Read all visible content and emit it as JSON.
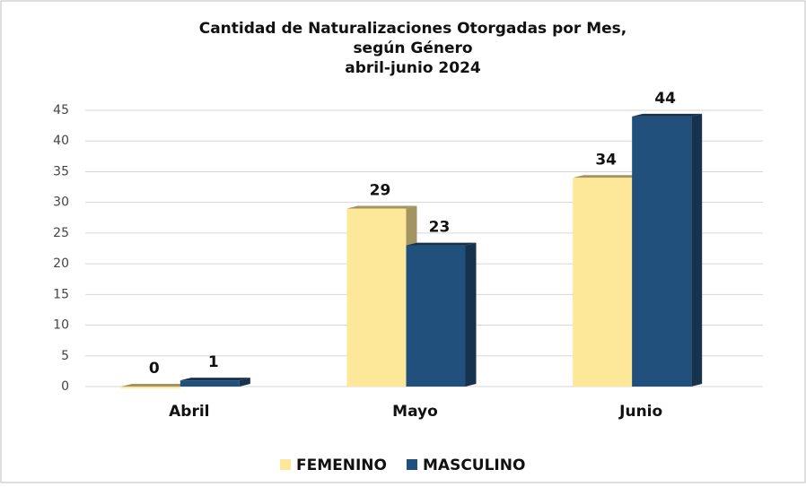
{
  "chart_data": {
    "type": "bar",
    "title": [
      "Cantidad de Naturalizaciones Otorgadas por Mes,",
      "según Género",
      "abril-junio 2024"
    ],
    "categories": [
      "Abril",
      "Mayo",
      "Junio"
    ],
    "series": [
      {
        "name": "FEMENINO",
        "color": "#fde89a",
        "side_color": "#a39462",
        "values": [
          0,
          29,
          34
        ]
      },
      {
        "name": "MASCULINO",
        "color": "#22507d",
        "side_color": "#16324d",
        "values": [
          1,
          23,
          44
        ]
      }
    ],
    "ylim": [
      0,
      45
    ],
    "yticks": [
      0,
      5,
      10,
      15,
      20,
      25,
      30,
      35,
      40,
      45
    ],
    "grid": true,
    "legend": "bottom"
  }
}
